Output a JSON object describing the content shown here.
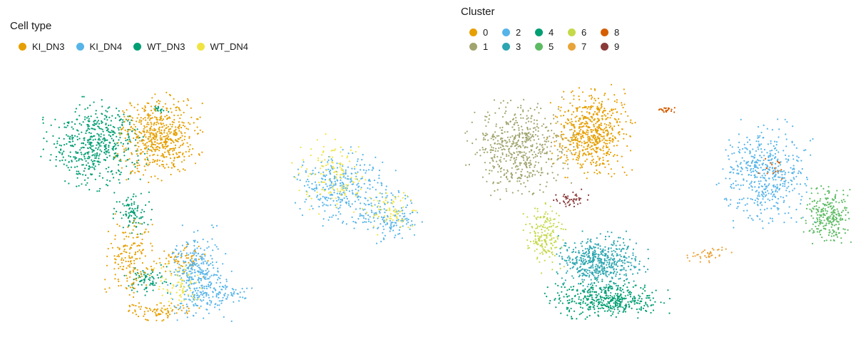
{
  "chart_data": [
    {
      "type": "scatter",
      "title": "",
      "xlabel": "",
      "ylabel": "",
      "grid": false,
      "legend": {
        "title": "Cell type",
        "position": "top-left",
        "items": [
          {
            "label": "KI_DN3",
            "color": "#E69F00"
          },
          {
            "label": "KI_DN4",
            "color": "#56B4E9"
          },
          {
            "label": "WT_DN3",
            "color": "#009E73"
          },
          {
            "label": "WT_DN4",
            "color": "#F0E442"
          }
        ]
      },
      "series": [
        {
          "name": "WT_DN3",
          "color": "#009E73",
          "regions": [
            {
              "cx": 0.17,
              "cy": 0.72,
              "rx": 0.1,
              "ry": 0.14,
              "n": 520
            },
            {
              "cx": 0.26,
              "cy": 0.44,
              "rx": 0.04,
              "ry": 0.08,
              "n": 90
            },
            {
              "cx": 0.3,
              "cy": 0.18,
              "rx": 0.05,
              "ry": 0.05,
              "n": 80
            },
            {
              "cx": 0.33,
              "cy": 0.86,
              "rx": 0.02,
              "ry": 0.01,
              "n": 18
            }
          ]
        },
        {
          "name": "KI_DN3",
          "color": "#E69F00",
          "regions": [
            {
              "cx": 0.33,
              "cy": 0.75,
              "rx": 0.08,
              "ry": 0.13,
              "n": 560
            },
            {
              "cx": 0.26,
              "cy": 0.25,
              "rx": 0.05,
              "ry": 0.14,
              "n": 170
            },
            {
              "cx": 0.38,
              "cy": 0.25,
              "rx": 0.06,
              "ry": 0.05,
              "n": 70
            },
            {
              "cx": 0.33,
              "cy": 0.05,
              "rx": 0.08,
              "ry": 0.03,
              "n": 80
            }
          ]
        },
        {
          "name": "KI_DN4",
          "color": "#56B4E9",
          "regions": [
            {
              "cx": 0.43,
              "cy": 0.19,
              "rx": 0.06,
              "ry": 0.15,
              "n": 360
            },
            {
              "cx": 0.79,
              "cy": 0.55,
              "rx": 0.1,
              "ry": 0.12,
              "n": 320
            },
            {
              "cx": 0.91,
              "cy": 0.43,
              "rx": 0.07,
              "ry": 0.08,
              "n": 160
            },
            {
              "cx": 0.5,
              "cy": 0.12,
              "rx": 0.05,
              "ry": 0.04,
              "n": 60
            }
          ]
        },
        {
          "name": "WT_DN4",
          "color": "#F0E442",
          "regions": [
            {
              "cx": 0.77,
              "cy": 0.6,
              "rx": 0.08,
              "ry": 0.12,
              "n": 130
            },
            {
              "cx": 0.92,
              "cy": 0.45,
              "rx": 0.06,
              "ry": 0.07,
              "n": 70
            },
            {
              "cx": 0.38,
              "cy": 0.16,
              "rx": 0.05,
              "ry": 0.08,
              "n": 70
            }
          ]
        }
      ]
    },
    {
      "type": "scatter",
      "title": "",
      "xlabel": "",
      "ylabel": "",
      "grid": false,
      "legend": {
        "title": "Cluster",
        "position": "top-left",
        "items": [
          {
            "label": "0",
            "color": "#E69F00"
          },
          {
            "label": "2",
            "color": "#56B4E9"
          },
          {
            "label": "4",
            "color": "#009E73"
          },
          {
            "label": "6",
            "color": "#C5D94A"
          },
          {
            "label": "8",
            "color": "#D55E00"
          },
          {
            "label": "1",
            "color": "#A1A46E"
          },
          {
            "label": "3",
            "color": "#2CA6B0"
          },
          {
            "label": "5",
            "color": "#5DBB63"
          },
          {
            "label": "7",
            "color": "#E8A33A"
          },
          {
            "label": "9",
            "color": "#8B3A3A"
          }
        ]
      },
      "series": [
        {
          "name": "0",
          "color": "#E69F00",
          "regions": [
            {
              "cx": 0.34,
              "cy": 0.77,
              "rx": 0.08,
              "ry": 0.14,
              "n": 620
            }
          ]
        },
        {
          "name": "1",
          "color": "#A1A46E",
          "regions": [
            {
              "cx": 0.16,
              "cy": 0.71,
              "rx": 0.1,
              "ry": 0.15,
              "n": 560
            }
          ]
        },
        {
          "name": "2",
          "color": "#56B4E9",
          "regions": [
            {
              "cx": 0.78,
              "cy": 0.6,
              "rx": 0.09,
              "ry": 0.16,
              "n": 480
            }
          ]
        },
        {
          "name": "3",
          "color": "#2CA6B0",
          "regions": [
            {
              "cx": 0.36,
              "cy": 0.25,
              "rx": 0.09,
              "ry": 0.09,
              "n": 520
            }
          ]
        },
        {
          "name": "4",
          "color": "#009E73",
          "regions": [
            {
              "cx": 0.38,
              "cy": 0.1,
              "rx": 0.12,
              "ry": 0.06,
              "n": 440
            }
          ]
        },
        {
          "name": "5",
          "color": "#5DBB63",
          "regions": [
            {
              "cx": 0.94,
              "cy": 0.44,
              "rx": 0.05,
              "ry": 0.09,
              "n": 260
            }
          ]
        },
        {
          "name": "6",
          "color": "#C5D94A",
          "regions": [
            {
              "cx": 0.22,
              "cy": 0.35,
              "rx": 0.04,
              "ry": 0.11,
              "n": 180
            }
          ]
        },
        {
          "name": "7",
          "color": "#E8A33A",
          "regions": [
            {
              "cx": 0.63,
              "cy": 0.28,
              "rx": 0.05,
              "ry": 0.03,
              "n": 40
            }
          ]
        },
        {
          "name": "8",
          "color": "#D55E00",
          "regions": [
            {
              "cx": 0.53,
              "cy": 0.86,
              "rx": 0.02,
              "ry": 0.01,
              "n": 22
            },
            {
              "cx": 0.8,
              "cy": 0.63,
              "rx": 0.03,
              "ry": 0.04,
              "n": 16
            }
          ]
        },
        {
          "name": "9",
          "color": "#8B3A3A",
          "regions": [
            {
              "cx": 0.29,
              "cy": 0.5,
              "rx": 0.04,
              "ry": 0.03,
              "n": 45
            }
          ]
        }
      ]
    }
  ]
}
